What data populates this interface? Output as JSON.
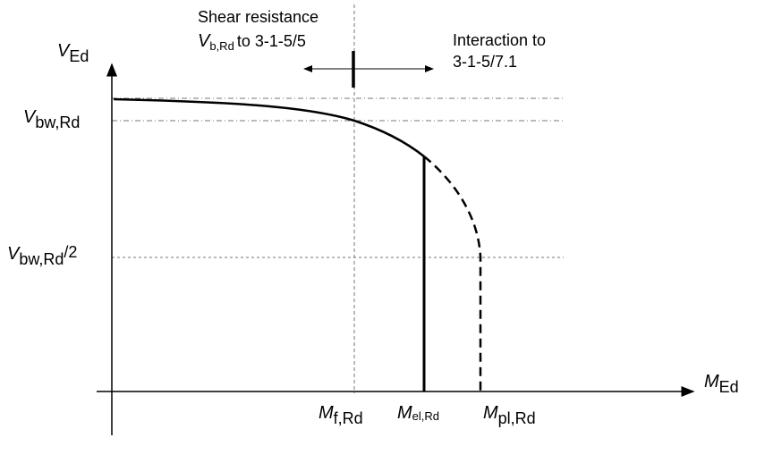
{
  "annotations": {
    "shear": {
      "line1": "Shear resistance",
      "symbol": "V",
      "subscript": "b,Rd",
      "rest": "to 3-1-5/5"
    },
    "interaction": {
      "line1": "Interaction to",
      "line2": "3-1-5/7.1"
    }
  },
  "axes": {
    "y": {
      "symbol": "V",
      "subscript": "Ed"
    },
    "x": {
      "symbol": "M",
      "subscript": "Ed"
    }
  },
  "y_labels": [
    {
      "symbol": "V",
      "subscript": "bw,Rd"
    },
    {
      "symbol": "V",
      "subscript": "bw,Rd",
      "suffix": "/2"
    }
  ],
  "x_labels": [
    {
      "symbol": "M",
      "subscript": "f,Rd"
    },
    {
      "symbol": "M",
      "subscript": "el,Rd"
    },
    {
      "symbol": "M",
      "subscript": "pl,Rd"
    }
  ]
}
